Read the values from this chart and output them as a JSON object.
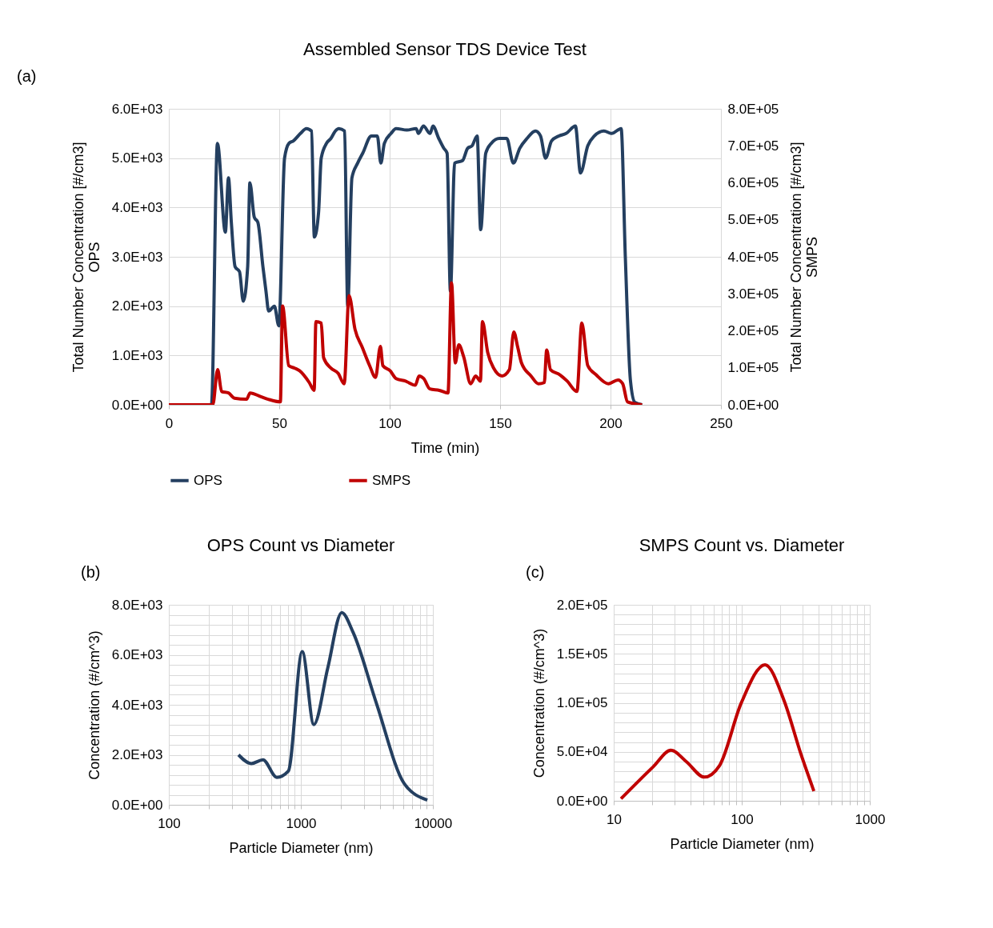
{
  "chart_data": [
    {
      "type": "line",
      "title": "Assembled Sensor TDS Device Test",
      "xlabel": "Time (min)",
      "ylabel": "Total Number Concentration [#/cm3]\nOPS",
      "y2label": "Total Number Concentration [#/cm3]\nSMPS",
      "annotations": [
        "(a)"
      ],
      "xlim": [
        0,
        250
      ],
      "xticks": [
        0,
        50,
        100,
        150,
        200,
        250
      ],
      "ylim": [
        0,
        6000
      ],
      "yticks": [
        {
          "value": 0,
          "label": "0.0E+00"
        },
        {
          "value": 1000,
          "label": "1.0E+03"
        },
        {
          "value": 2000,
          "label": "2.0E+03"
        },
        {
          "value": 3000,
          "label": "3.0E+03"
        },
        {
          "value": 4000,
          "label": "4.0E+03"
        },
        {
          "value": 5000,
          "label": "5.0E+03"
        },
        {
          "value": 6000,
          "label": "6.0E+03"
        }
      ],
      "y2lim": [
        0,
        800000
      ],
      "y2ticks": [
        {
          "value": 0,
          "label": "0.0E+00"
        },
        {
          "value": 100000,
          "label": "1.0E+05"
        },
        {
          "value": 200000,
          "label": "2.0E+05"
        },
        {
          "value": 300000,
          "label": "3.0E+05"
        },
        {
          "value": 400000,
          "label": "4.0E+05"
        },
        {
          "value": 500000,
          "label": "5.0E+05"
        },
        {
          "value": 600000,
          "label": "6.0E+05"
        },
        {
          "value": 700000,
          "label": "7.0E+05"
        },
        {
          "value": 800000,
          "label": "8.0E+05"
        }
      ],
      "grid": true,
      "legend": "bottom",
      "series": [
        {
          "name": "OPS",
          "color": "#243f60",
          "x": [
            0,
            19.3,
            22,
            25.6,
            27,
            28.3,
            30,
            32,
            33.7,
            35.7,
            36.7,
            38.7,
            40.3,
            42.6,
            44,
            45.2,
            47.8,
            49.8,
            52.4,
            54.4,
            56.4,
            59.6,
            62.3,
            64.6,
            65.9,
            67.8,
            69,
            71.4,
            73.4,
            75.4,
            77,
            79.6,
            81,
            82.9,
            85.5,
            87.8,
            91.7,
            94.4,
            96,
            97.6,
            100.6,
            102.9,
            107.8,
            112,
            113,
            115.3,
            118.3,
            119.6,
            122.2,
            124.5,
            126,
            127.5,
            129.4,
            133,
            135.3,
            137.3,
            139.6,
            141.2,
            143.5,
            146,
            149.7,
            153,
            156,
            158.9,
            162.2,
            166,
            168.3,
            170.6,
            173.3,
            176.6,
            179.9,
            184.1,
            186.4,
            189.7,
            192.7,
            197,
            200.5,
            204.8,
            206.7,
            209,
            211,
            214.3
          ],
          "values": [
            0,
            0,
            5300,
            3500,
            4600,
            3700,
            2800,
            2700,
            2100,
            2800,
            4500,
            3800,
            3700,
            2800,
            2300,
            1900,
            2000,
            1600,
            5000,
            5300,
            5350,
            5500,
            5600,
            5550,
            3400,
            3900,
            5000,
            5300,
            5400,
            5550,
            5600,
            5550,
            2000,
            4600,
            4900,
            5100,
            5450,
            5450,
            4900,
            5300,
            5500,
            5600,
            5570,
            5600,
            5500,
            5650,
            5500,
            5650,
            5400,
            5200,
            5100,
            2300,
            4900,
            4950,
            5200,
            5250,
            5450,
            3550,
            5100,
            5300,
            5400,
            5400,
            4900,
            5200,
            5400,
            5550,
            5450,
            5000,
            5350,
            5450,
            5500,
            5650,
            4700,
            5250,
            5450,
            5550,
            5500,
            5600,
            3000,
            500,
            50,
            0
          ]
        },
        {
          "name": "SMPS",
          "color": "#c00000",
          "axis": "y2",
          "x": [
            0,
            19.9,
            22.1,
            23.9,
            27,
            29.7,
            35.2,
            36.8,
            41.7,
            45,
            50.5,
            51.5,
            54.3,
            57,
            59.2,
            63.6,
            65.8,
            66.6,
            69,
            70.1,
            73.4,
            76.7,
            79.4,
            81.6,
            84.3,
            87.6,
            90.9,
            93.6,
            95.8,
            96.9,
            100.2,
            102.9,
            107.2,
            111.6,
            113.3,
            115.4,
            118.2,
            122.5,
            126.4,
            128,
            129.7,
            131.3,
            133.5,
            136.7,
            138.9,
            141.1,
            142,
            144.4,
            147.1,
            150.9,
            154.2,
            156.2,
            158,
            159.7,
            164,
            167.3,
            170,
            171.1,
            172.8,
            177.1,
            180.4,
            184.8,
            187,
            189.7,
            193.5,
            199,
            203.4,
            205.5,
            207.7,
            214.3
          ],
          "values": [
            0,
            0,
            95000,
            36000,
            32000,
            18000,
            15000,
            32000,
            22000,
            15000,
            8000,
            267000,
            106000,
            99000,
            92000,
            60000,
            39000,
            225000,
            221000,
            127000,
            99000,
            85000,
            57000,
            295000,
            204000,
            155000,
            106000,
            74000,
            158000,
            106000,
            92000,
            71000,
            64000,
            53000,
            78000,
            71000,
            43000,
            39000,
            32000,
            330000,
            113000,
            162000,
            130000,
            57000,
            78000,
            64000,
            225000,
            141000,
            99000,
            78000,
            95000,
            197000,
            155000,
            113000,
            78000,
            57000,
            60000,
            148000,
            95000,
            81000,
            64000,
            36000,
            221000,
            106000,
            81000,
            57000,
            67000,
            57000,
            8000,
            0
          ]
        }
      ]
    },
    {
      "type": "line",
      "title": "OPS Count vs Diameter",
      "xlabel": "Particle Diameter (nm)",
      "ylabel": "Concentration (#/cm^3)",
      "annotations": [
        "(b)"
      ],
      "log": "x",
      "grid": true,
      "xlim": [
        100,
        10000
      ],
      "xticks": [
        100,
        {
          "value": 200,
          "label": null
        },
        {
          "value": 300,
          "label": null
        },
        {
          "value": 400,
          "label": null
        },
        {
          "value": 500,
          "label": null
        },
        {
          "value": 600,
          "label": null
        },
        {
          "value": 700,
          "label": null
        },
        {
          "value": 800,
          "label": null
        },
        {
          "value": 900,
          "label": null
        },
        1000,
        {
          "value": 2000,
          "label": null
        },
        {
          "value": 3000,
          "label": null
        },
        {
          "value": 4000,
          "label": null
        },
        {
          "value": 5000,
          "label": null
        },
        {
          "value": 6000,
          "label": null
        },
        {
          "value": 7000,
          "label": null
        },
        {
          "value": 8000,
          "label": null
        },
        {
          "value": 9000,
          "label": null
        },
        10000
      ],
      "ylim": [
        0,
        8000
      ],
      "yticks": [
        {
          "value": 0,
          "label": "0.0E+00"
        },
        {
          "value": 400,
          "label": null
        },
        {
          "value": 800,
          "label": null
        },
        {
          "value": 1200,
          "label": null
        },
        {
          "value": 1600,
          "label": null
        },
        {
          "value": 2000,
          "label": "2.0E+03"
        },
        {
          "value": 2400,
          "label": null
        },
        {
          "value": 2800,
          "label": null
        },
        {
          "value": 3200,
          "label": null
        },
        {
          "value": 3600,
          "label": null
        },
        {
          "value": 4000,
          "label": "4.0E+03"
        },
        {
          "value": 4400,
          "label": null
        },
        {
          "value": 4800,
          "label": null
        },
        {
          "value": 5200,
          "label": null
        },
        {
          "value": 5600,
          "label": null
        },
        {
          "value": 6000,
          "label": "6.0E+03"
        },
        {
          "value": 6400,
          "label": null
        },
        {
          "value": 6800,
          "label": null
        },
        {
          "value": 7200,
          "label": null
        },
        {
          "value": 7600,
          "label": null
        },
        {
          "value": 8000,
          "label": "8.0E+03"
        }
      ],
      "series": [
        {
          "color": "#243f60",
          "x": [
            337,
            421,
            516,
            657,
            804,
            1024,
            1254,
            1600,
            2040,
            2490,
            3730,
            6060,
            9080
          ],
          "values": [
            2000,
            1650,
            1800,
            1100,
            1350,
            6130,
            3210,
            5480,
            7690,
            6890,
            4070,
            850,
            190
          ]
        }
      ]
    },
    {
      "type": "line",
      "title": "SMPS Count vs. Diameter",
      "xlabel": "Particle Diameter (nm)",
      "ylabel": "Concentration (#/cm^3)",
      "annotations": [
        "(c)"
      ],
      "log": "x",
      "grid": true,
      "xlim": [
        10,
        1000
      ],
      "xticks": [
        10,
        {
          "value": 20,
          "label": null
        },
        {
          "value": 30,
          "label": null
        },
        {
          "value": 40,
          "label": null
        },
        {
          "value": 50,
          "label": null
        },
        {
          "value": 60,
          "label": null
        },
        {
          "value": 70,
          "label": null
        },
        {
          "value": 80,
          "label": null
        },
        {
          "value": 90,
          "label": null
        },
        100,
        {
          "value": 200,
          "label": null
        },
        {
          "value": 300,
          "label": null
        },
        {
          "value": 400,
          "label": null
        },
        {
          "value": 500,
          "label": null
        },
        {
          "value": 600,
          "label": null
        },
        {
          "value": 700,
          "label": null
        },
        {
          "value": 800,
          "label": null
        },
        {
          "value": 900,
          "label": null
        },
        1000
      ],
      "ylim": [
        0,
        200000
      ],
      "yticks": [
        {
          "value": 0,
          "label": "0.0E+00"
        },
        {
          "value": 10000,
          "label": null
        },
        {
          "value": 20000,
          "label": null
        },
        {
          "value": 30000,
          "label": null
        },
        {
          "value": 40000,
          "label": null
        },
        {
          "value": 50000,
          "label": "5.0E+04"
        },
        {
          "value": 60000,
          "label": null
        },
        {
          "value": 70000,
          "label": null
        },
        {
          "value": 80000,
          "label": null
        },
        {
          "value": 90000,
          "label": null
        },
        {
          "value": 100000,
          "label": "1.0E+05"
        },
        {
          "value": 110000,
          "label": null
        },
        {
          "value": 120000,
          "label": null
        },
        {
          "value": 130000,
          "label": null
        },
        {
          "value": 140000,
          "label": null
        },
        {
          "value": 150000,
          "label": "1.5E+05"
        },
        {
          "value": 160000,
          "label": null
        },
        {
          "value": 170000,
          "label": null
        },
        {
          "value": 180000,
          "label": null
        },
        {
          "value": 190000,
          "label": null
        },
        {
          "value": 200000,
          "label": "2.0E+05"
        }
      ],
      "series": [
        {
          "color": "#c00000",
          "x": [
            11.4,
            20.3,
            28,
            37,
            51,
            67,
            99,
            152,
            214,
            290,
            366
          ],
          "values": [
            2100,
            34600,
            51600,
            39800,
            24200,
            35900,
            99700,
            138800,
            102300,
            47600,
            9900
          ]
        }
      ]
    }
  ]
}
